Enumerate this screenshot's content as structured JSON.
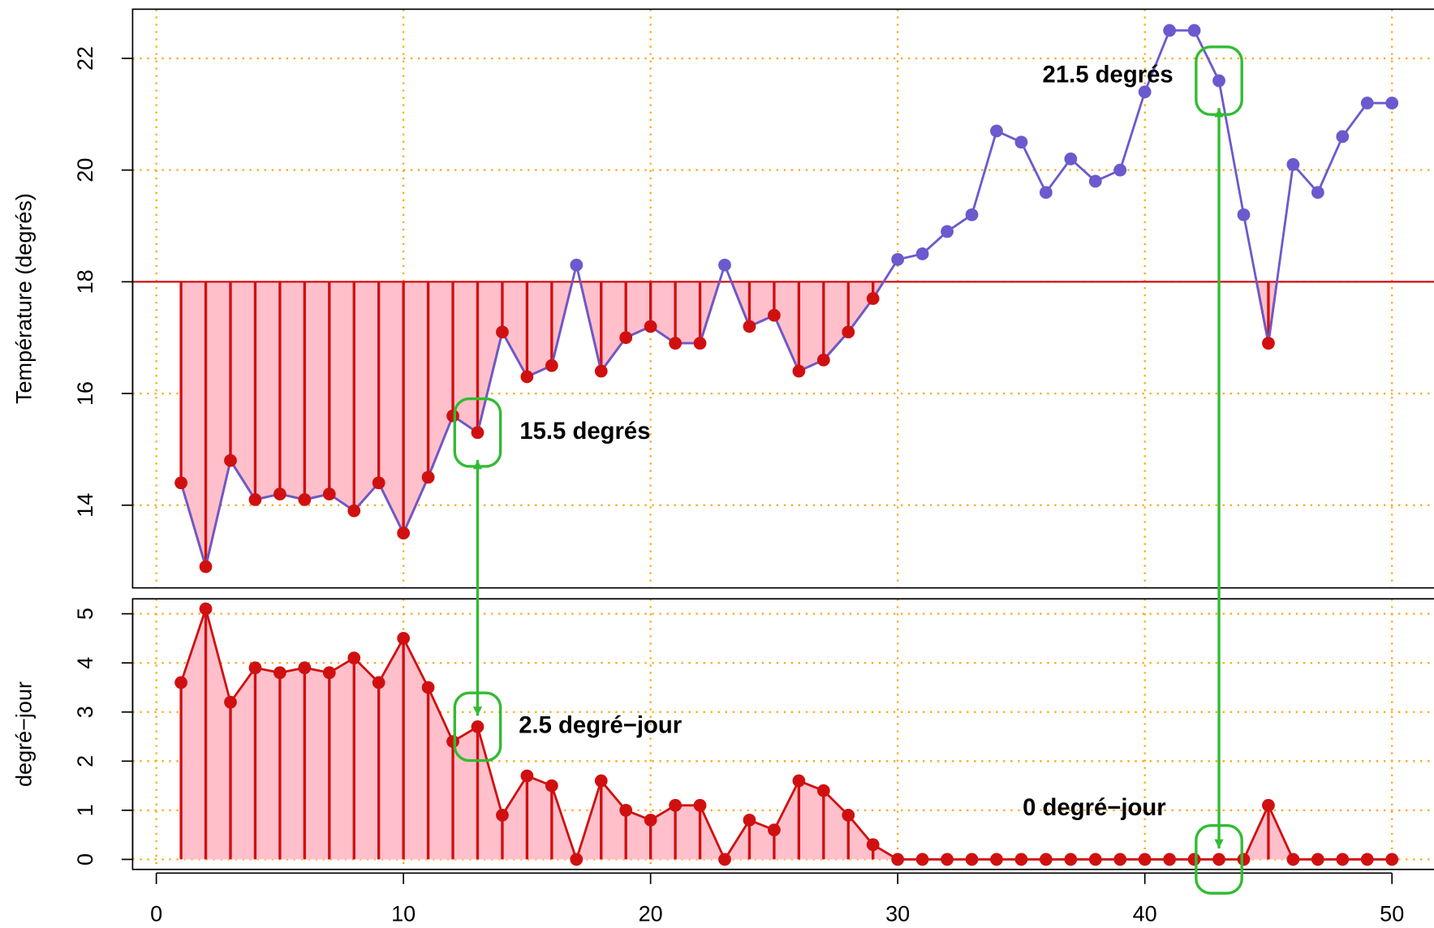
{
  "chart_data": [
    {
      "type": "line",
      "ylabel": "Température (degrés)",
      "x": [
        1,
        2,
        3,
        4,
        5,
        6,
        7,
        8,
        9,
        10,
        11,
        12,
        13,
        14,
        15,
        16,
        17,
        18,
        19,
        20,
        21,
        22,
        23,
        24,
        25,
        26,
        27,
        28,
        29,
        30,
        31,
        32,
        33,
        34,
        35,
        36,
        37,
        38,
        39,
        40,
        41,
        42,
        43,
        44,
        45,
        46,
        47,
        48,
        49,
        50
      ],
      "values": [
        14.4,
        12.9,
        14.8,
        14.1,
        14.2,
        14.1,
        14.2,
        13.9,
        14.4,
        13.5,
        14.5,
        15.6,
        15.3,
        17.1,
        16.3,
        16.5,
        18.3,
        16.4,
        17.0,
        17.2,
        16.9,
        16.9,
        18.3,
        17.2,
        17.4,
        16.4,
        16.6,
        17.1,
        17.7,
        18.4,
        18.5,
        18.9,
        19.2,
        20.7,
        20.5,
        19.6,
        20.2,
        19.8,
        20.0,
        21.4,
        22.5,
        22.5,
        21.6,
        19.2,
        16.9,
        20.1,
        19.6,
        20.6,
        21.2,
        21.2
      ],
      "threshold": 18,
      "color_below": "#d01010",
      "color_above": "#6a5acd",
      "fill_color": "#ffc0cb",
      "xlim": [
        -0.96,
        51.96
      ],
      "xticks": [
        0,
        10,
        20,
        30,
        40,
        50
      ],
      "ylim": [
        12.52,
        22.88
      ],
      "yticks": [
        14,
        16,
        18,
        20,
        22
      ],
      "grid": true,
      "grid_color": "#ffa500",
      "annotations": [
        {
          "text": "15.5 degrés"
        },
        {
          "text": "21.5 degrés"
        }
      ],
      "annotation_color": "#33bb33"
    },
    {
      "type": "line",
      "ylabel": "degré−jour",
      "x": [
        1,
        2,
        3,
        4,
        5,
        6,
        7,
        8,
        9,
        10,
        11,
        12,
        13,
        14,
        15,
        16,
        17,
        18,
        19,
        20,
        21,
        22,
        23,
        24,
        25,
        26,
        27,
        28,
        29,
        30,
        31,
        32,
        33,
        34,
        35,
        36,
        37,
        38,
        39,
        40,
        41,
        42,
        43,
        44,
        45,
        46,
        47,
        48,
        49,
        50
      ],
      "values": [
        3.6,
        5.1,
        3.2,
        3.9,
        3.8,
        3.9,
        3.8,
        4.1,
        3.6,
        4.5,
        3.5,
        2.4,
        2.7,
        0.9,
        1.7,
        1.5,
        0,
        1.6,
        1.0,
        0.8,
        1.1,
        1.1,
        0,
        0.8,
        0.6,
        1.6,
        1.4,
        0.9,
        0.3,
        0,
        0,
        0,
        0,
        0,
        0,
        0,
        0,
        0,
        0,
        0,
        0,
        0,
        0,
        0,
        1.1,
        0,
        0,
        0,
        0,
        0
      ],
      "color": "#d01010",
      "fill_color": "#ffc0cb",
      "xlim": [
        -0.96,
        51.96
      ],
      "xticks": [
        0,
        10,
        20,
        30,
        40,
        50
      ],
      "ylim": [
        -0.204,
        5.304
      ],
      "yticks": [
        0,
        1,
        2,
        3,
        4,
        5
      ],
      "grid": true,
      "grid_color": "#ffa500",
      "annotations": [
        {
          "text": "2.5 degré−jour"
        },
        {
          "text": "0 degré−jour"
        }
      ],
      "annotation_color": "#33bb33"
    }
  ]
}
